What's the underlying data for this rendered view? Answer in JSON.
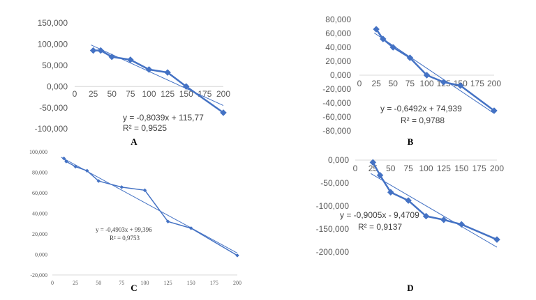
{
  "chart_data": [
    {
      "type": "scatter",
      "panel_label": "A",
      "x": [
        25,
        35,
        50,
        75,
        100,
        125,
        150,
        200
      ],
      "y": [
        85000,
        85000,
        70000,
        63000,
        40000,
        33000,
        0,
        -62000
      ],
      "xlim": [
        0,
        200
      ],
      "ylim": [
        -100000,
        150000
      ],
      "xticks": [
        "0",
        "25",
        "50",
        "75",
        "100",
        "125",
        "150",
        "175",
        "200"
      ],
      "yticks": [
        "150,000",
        "100,000",
        "50,000",
        "0,000",
        "-50,000",
        "-100,000"
      ],
      "trendline": {
        "slope": -0.8039,
        "intercept": 115.77,
        "scale": 1000
      },
      "equation": "y = -0,8039x + 115,77",
      "r2": "R² = 0,9525",
      "color": "#4472C4"
    },
    {
      "type": "scatter",
      "panel_label": "B",
      "x": [
        25,
        35,
        50,
        75,
        100,
        125,
        150,
        200
      ],
      "y": [
        66000,
        52000,
        40000,
        25000,
        0,
        -10000,
        -15000,
        -51000
      ],
      "xlim": [
        0,
        200
      ],
      "ylim": [
        -80000,
        80000
      ],
      "xticks": [
        "0",
        "25",
        "50",
        "75",
        "100",
        "125",
        "150",
        "175",
        "200"
      ],
      "yticks": [
        "80,000",
        "60,000",
        "40,000",
        "20,000",
        "0,000",
        "-20,000",
        "-40,000",
        "-60,000",
        "-80,000"
      ],
      "trendline": {
        "slope": -0.6492,
        "intercept": 74.939,
        "scale": 1000
      },
      "equation": "y = -0,6492x + 74,939",
      "r2": "R² = 0,9788",
      "color": "#4472C4"
    },
    {
      "type": "scatter",
      "panel_label": "C",
      "x": [
        12.5,
        15,
        25,
        37.5,
        50,
        75,
        100,
        125,
        150,
        200
      ],
      "y": [
        93500,
        90500,
        85500,
        81500,
        71500,
        65500,
        62500,
        32000,
        25500,
        -1000
      ],
      "xlim": [
        0,
        200
      ],
      "ylim": [
        -20000,
        100000
      ],
      "xticks": [
        "0",
        "25",
        "50",
        "75",
        "100",
        "125",
        "150",
        "175",
        "200"
      ],
      "yticks": [
        "100,000",
        "80,000",
        "60,000",
        "40,000",
        "20,000",
        "0,000",
        "-20,000"
      ],
      "trendline": {
        "slope": -0.4903,
        "intercept": 99.396,
        "scale": 1000
      },
      "equation": "y = -0,4903x + 99,396",
      "r2": "R² = 0,9753",
      "color": "#4472C4"
    },
    {
      "type": "scatter",
      "panel_label": "D",
      "x": [
        25,
        35,
        50,
        75,
        100,
        125,
        150,
        200
      ],
      "y": [
        -5000,
        -33000,
        -70000,
        -88000,
        -122000,
        -130000,
        -140000,
        -173000
      ],
      "xlim": [
        0,
        200
      ],
      "ylim": [
        -200000,
        0
      ],
      "xticks": [
        "0",
        "25",
        "50",
        "75",
        "100",
        "125",
        "150",
        "175",
        "200"
      ],
      "yticks": [
        "0,000",
        "-50,000",
        "-100,000",
        "-150,000",
        "-200,000"
      ],
      "trendline": {
        "slope": -0.9005,
        "intercept": -9.4709,
        "scale": 1000
      },
      "equation": "y = -0,9005x - 9,4709",
      "r2": "R² = 0,9137",
      "color": "#4472C4"
    }
  ]
}
